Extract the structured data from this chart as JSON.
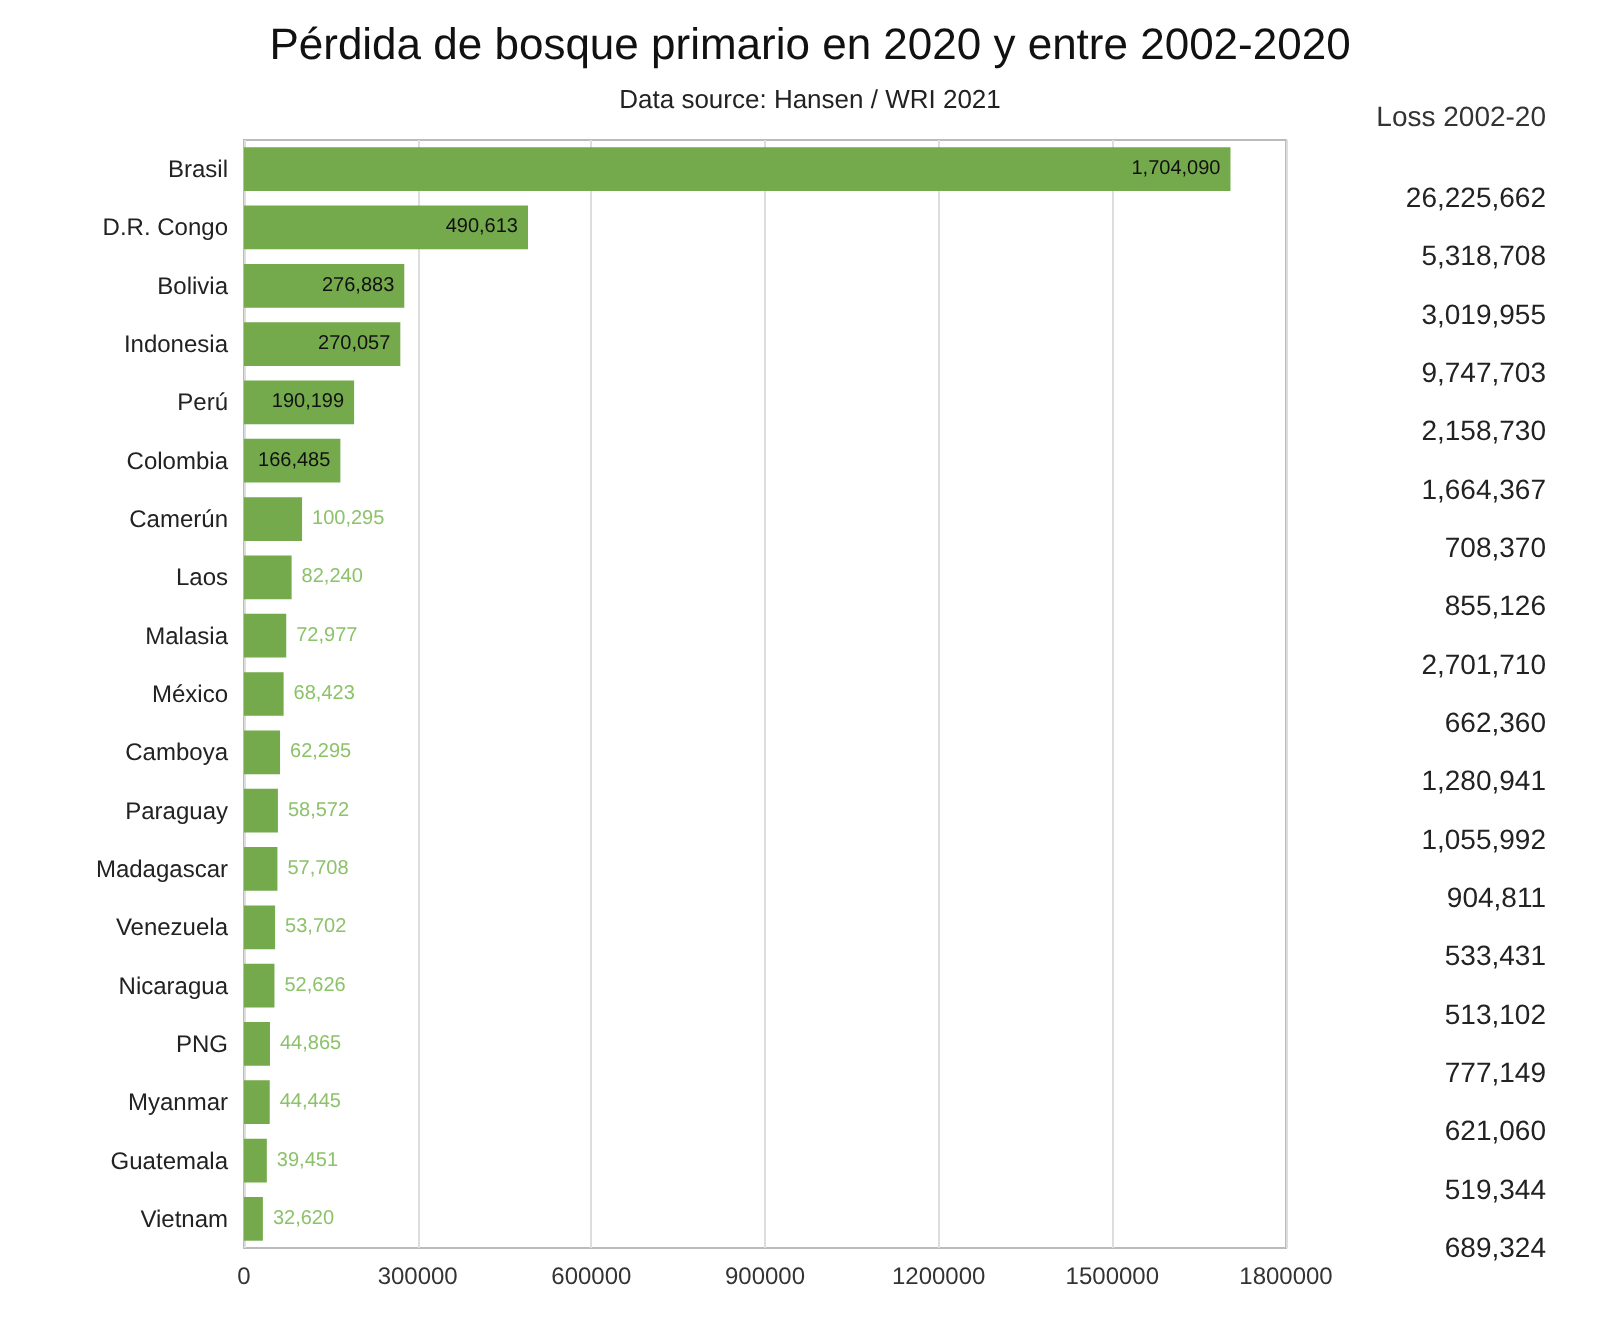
{
  "chart_data": {
    "type": "bar",
    "orientation": "horizontal",
    "title": "Pérdida de bosque primario en 2020 y entre 2002-2020",
    "subtitle": "Data source: Hansen / WRI 2021",
    "categories": [
      "Brasil",
      "D.R. Congo",
      "Bolivia",
      "Indonesia",
      "Perú",
      "Colombia",
      "Camerún",
      "Laos",
      "Malasia",
      "México",
      "Camboya",
      "Paraguay",
      "Madagascar",
      "Venezuela",
      "Nicaragua",
      "PNG",
      "Myanmar",
      "Guatemala",
      "Vietnam"
    ],
    "values": [
      1704090,
      490613,
      276883,
      270057,
      190199,
      166485,
      100295,
      82240,
      72977,
      68423,
      62295,
      58572,
      57708,
      53702,
      52626,
      44865,
      44445,
      39451,
      32620
    ],
    "value_labels": [
      "1,704,090",
      "490,613",
      "276,883",
      "270,057",
      "190,199",
      "166,485",
      "100,295",
      "82,240",
      "72,977",
      "68,423",
      "62,295",
      "58,572",
      "57,708",
      "53,702",
      "52,626",
      "44,865",
      "44,445",
      "39,451",
      "32,620"
    ],
    "color": "#74a94c",
    "grid": "x",
    "xlim": [
      0,
      1800000
    ],
    "xticks": [
      0,
      300000,
      600000,
      900000,
      1200000,
      1500000,
      1800000
    ],
    "annotations": [
      "Loss 2002-20",
      "26,225,662",
      "5,318,708",
      "3,019,955",
      "9,747,703",
      "2,158,730",
      "1,664,367",
      "708,370",
      "855,126",
      "2,701,710",
      "662,360",
      "1,280,941",
      "1,055,992",
      "904,811",
      "533,431",
      "513,102",
      "777,149",
      "621,060",
      "519,344",
      "689,324"
    ]
  }
}
